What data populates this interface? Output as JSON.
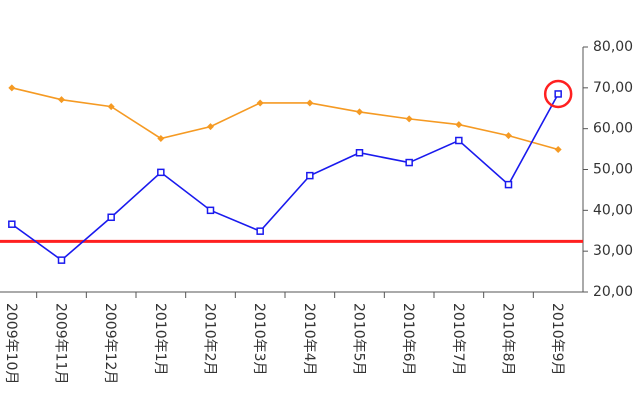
{
  "chart_data": {
    "type": "line",
    "categories": [
      "2009年10月",
      "2009年11月",
      "2009年12月",
      "2010年1月",
      "2010年2月",
      "2010年3月",
      "2010年4月",
      "2010年5月",
      "2010年6月",
      "2010年7月",
      "2010年8月",
      "2010年9月"
    ],
    "series": [
      {
        "color": "#f59a23",
        "values": [
          70000,
          67100,
          65400,
          57600,
          60500,
          66300,
          66300,
          64100,
          62400,
          61000,
          58300,
          54900
        ]
      },
      {
        "color": "#1a1aee",
        "values": [
          36600,
          27800,
          38300,
          49300,
          40000,
          34900,
          48500,
          54100,
          51700,
          57100,
          46300,
          68500
        ]
      }
    ],
    "reference_line": 32400,
    "reference_color": "#ff2020",
    "ylim": [
      20000,
      80000
    ],
    "yticks": [
      {
        "value": 20000,
        "label": "20,00"
      },
      {
        "value": 30000,
        "label": "30,00"
      },
      {
        "value": 40000,
        "label": "40,00"
      },
      {
        "value": 50000,
        "label": "50,00"
      },
      {
        "value": 60000,
        "label": "60,00"
      },
      {
        "value": 70000,
        "label": "70,00"
      },
      {
        "value": 80000,
        "label": "80,00"
      }
    ],
    "grid": false
  }
}
